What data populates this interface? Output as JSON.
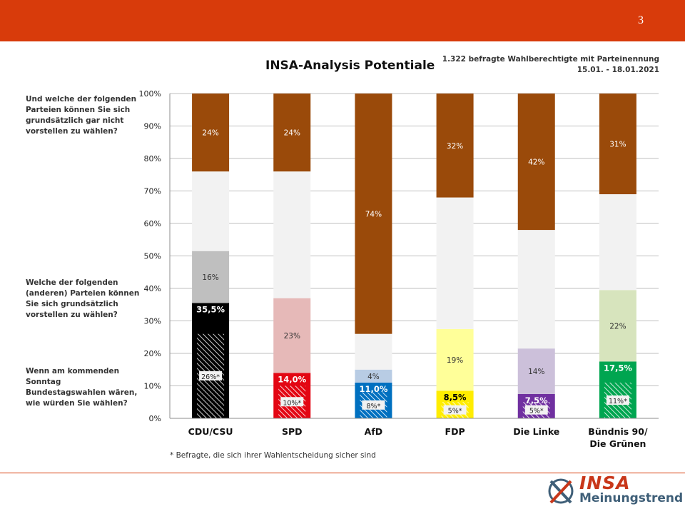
{
  "page": {
    "number": "3"
  },
  "header": {
    "title": "INSA-Analysis Potentiale",
    "sample_line": "1.322 befragte Wahlberechtigte mit Parteinennung",
    "date_line": "15.01. - 18.01.2021"
  },
  "questions": {
    "q1": "Und welche der folgenden Parteien können Sie sich grundsätzlich  gar nicht vorstellen zu wählen?",
    "q2": "Welche der folgenden (anderen) Parteien können Sie sich  grundsätzlich vorstellen zu wählen?",
    "q3": "Wenn am kommenden Sonntag Bundestagswahlen wären, wie würden Sie wählen?"
  },
  "footnote": "* Befragte, die sich ihrer Wahlentscheidung sicher sind",
  "logo": {
    "brand": "INSA",
    "subtitle": "Meinungstrend"
  },
  "colors": {
    "brand_red": "#d83b0b",
    "rejection": "#9a4a0a",
    "neutral": "#f2f2f2"
  },
  "chart_data": {
    "type": "bar",
    "stacked": true,
    "ylim": [
      0,
      100
    ],
    "yticks": [
      0,
      10,
      20,
      30,
      40,
      50,
      60,
      70,
      80,
      90,
      100
    ],
    "ytick_labels": [
      "0%",
      "10%",
      "20%",
      "30%",
      "40%",
      "50%",
      "60%",
      "70%",
      "80%",
      "90%",
      "100%"
    ],
    "grid": true,
    "categories": [
      [
        "CDU/CSU"
      ],
      [
        "SPD"
      ],
      [
        "AfD"
      ],
      [
        "FDP"
      ],
      [
        "Die Linke"
      ],
      [
        "Bündnis 90/",
        "Die Grünen"
      ]
    ],
    "bars": [
      {
        "vote": 35.5,
        "vote_label": "35,5%",
        "certain": 26,
        "certain_label": "26%*",
        "potential": 16,
        "potential_label": "16%",
        "rejection": 24,
        "rejection_label": "24%",
        "vote_color": "#000000",
        "potential_color": "#bfbfbf"
      },
      {
        "vote": 14.0,
        "vote_label": "14,0%",
        "certain": 10,
        "certain_label": "10%*",
        "potential": 23,
        "potential_label": "23%",
        "rejection": 24,
        "rejection_label": "24%",
        "vote_color": "#e30613",
        "potential_color": "#e6b9b8"
      },
      {
        "vote": 11.0,
        "vote_label": "11,0%",
        "certain": 8,
        "certain_label": "8%*",
        "potential": 4,
        "potential_label": "4%",
        "rejection": 74,
        "rejection_label": "74%",
        "vote_color": "#0070c0",
        "potential_color": "#b8cce4"
      },
      {
        "vote": 8.5,
        "vote_label": "8,5%",
        "certain": 5,
        "certain_label": "5%*",
        "potential": 19,
        "potential_label": "19%",
        "rejection": 32,
        "rejection_label": "32%",
        "vote_color": "#ffed00",
        "potential_color": "#ffff99"
      },
      {
        "vote": 7.5,
        "vote_label": "7,5%",
        "certain": 5,
        "certain_label": "5%*",
        "potential": 14,
        "potential_label": "14%",
        "rejection": 42,
        "rejection_label": "42%",
        "vote_color": "#7030a0",
        "potential_color": "#ccc0da"
      },
      {
        "vote": 17.5,
        "vote_label": "17,5%",
        "certain": 11,
        "certain_label": "11%*",
        "potential": 22,
        "potential_label": "22%",
        "rejection": 31,
        "rejection_label": "31%",
        "vote_color": "#00a550",
        "potential_color": "#d7e4bd"
      }
    ]
  }
}
